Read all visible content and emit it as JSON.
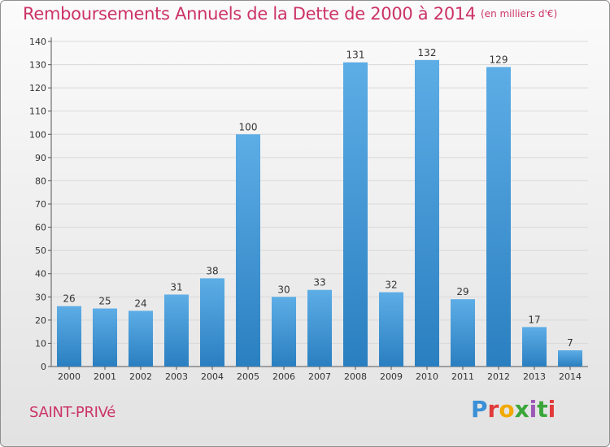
{
  "header": {
    "title": "Remboursements Annuels de la Dette de 2000 à 2014",
    "unit": "(en milliers d'€)"
  },
  "footer": {
    "commune": "SAINT-PRIVé",
    "logo_text": "Proxiti"
  },
  "colors": {
    "bar_light": "#5dade6",
    "bar_dark": "#2a7fc0",
    "title": "#cc3366",
    "grid": "#d9d9d9"
  },
  "chart_data": {
    "type": "bar",
    "title": "Remboursements Annuels de la Dette de 2000 à 2014",
    "xlabel": "",
    "ylabel": "",
    "categories": [
      "2000",
      "2001",
      "2002",
      "2003",
      "2004",
      "2005",
      "2006",
      "2007",
      "2008",
      "2009",
      "2010",
      "2011",
      "2012",
      "2013",
      "2014"
    ],
    "values": [
      26,
      25,
      24,
      31,
      38,
      100,
      30,
      33,
      131,
      32,
      132,
      29,
      129,
      17,
      7
    ],
    "ylim": [
      0,
      140
    ],
    "yticks": [
      0,
      10,
      20,
      30,
      40,
      50,
      60,
      70,
      80,
      90,
      100,
      110,
      120,
      130,
      140
    ],
    "grid": true,
    "data_labels": true
  }
}
